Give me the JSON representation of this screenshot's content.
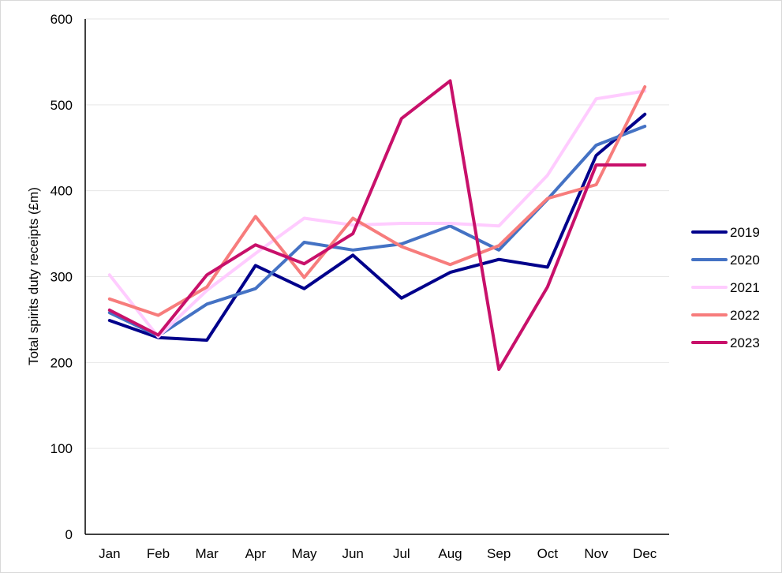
{
  "chart_data": {
    "type": "line",
    "title": "",
    "xlabel": "",
    "ylabel": "Total spirits duty receipts (£m)",
    "ylim": [
      0,
      600
    ],
    "yticks": [
      0,
      100,
      200,
      300,
      400,
      500,
      600
    ],
    "grid": "horizontal",
    "legend_position": "right",
    "categories": [
      "Jan",
      "Feb",
      "Mar",
      "Apr",
      "May",
      "Jun",
      "Jul",
      "Aug",
      "Sep",
      "Oct",
      "Nov",
      "Dec"
    ],
    "series": [
      {
        "name": "2019",
        "color": "#00008b",
        "values": [
          249,
          229,
          226,
          313,
          286,
          325,
          275,
          305,
          320,
          311,
          441,
          489
        ]
      },
      {
        "name": "2020",
        "color": "#4472c4",
        "values": [
          258,
          231,
          268,
          286,
          340,
          331,
          338,
          359,
          331,
          390,
          453,
          475
        ]
      },
      {
        "name": "2021",
        "color": "#ffccff",
        "values": [
          302,
          230,
          284,
          327,
          368,
          360,
          362,
          362,
          359,
          418,
          507,
          516
        ]
      },
      {
        "name": "2022",
        "color": "#f77c7c",
        "values": [
          274,
          255,
          288,
          370,
          299,
          368,
          335,
          314,
          336,
          391,
          407,
          521
        ]
      },
      {
        "name": "2023",
        "color": "#c8106a",
        "values": [
          261,
          232,
          302,
          337,
          315,
          350,
          484,
          528,
          192,
          288,
          430,
          430
        ]
      }
    ]
  }
}
